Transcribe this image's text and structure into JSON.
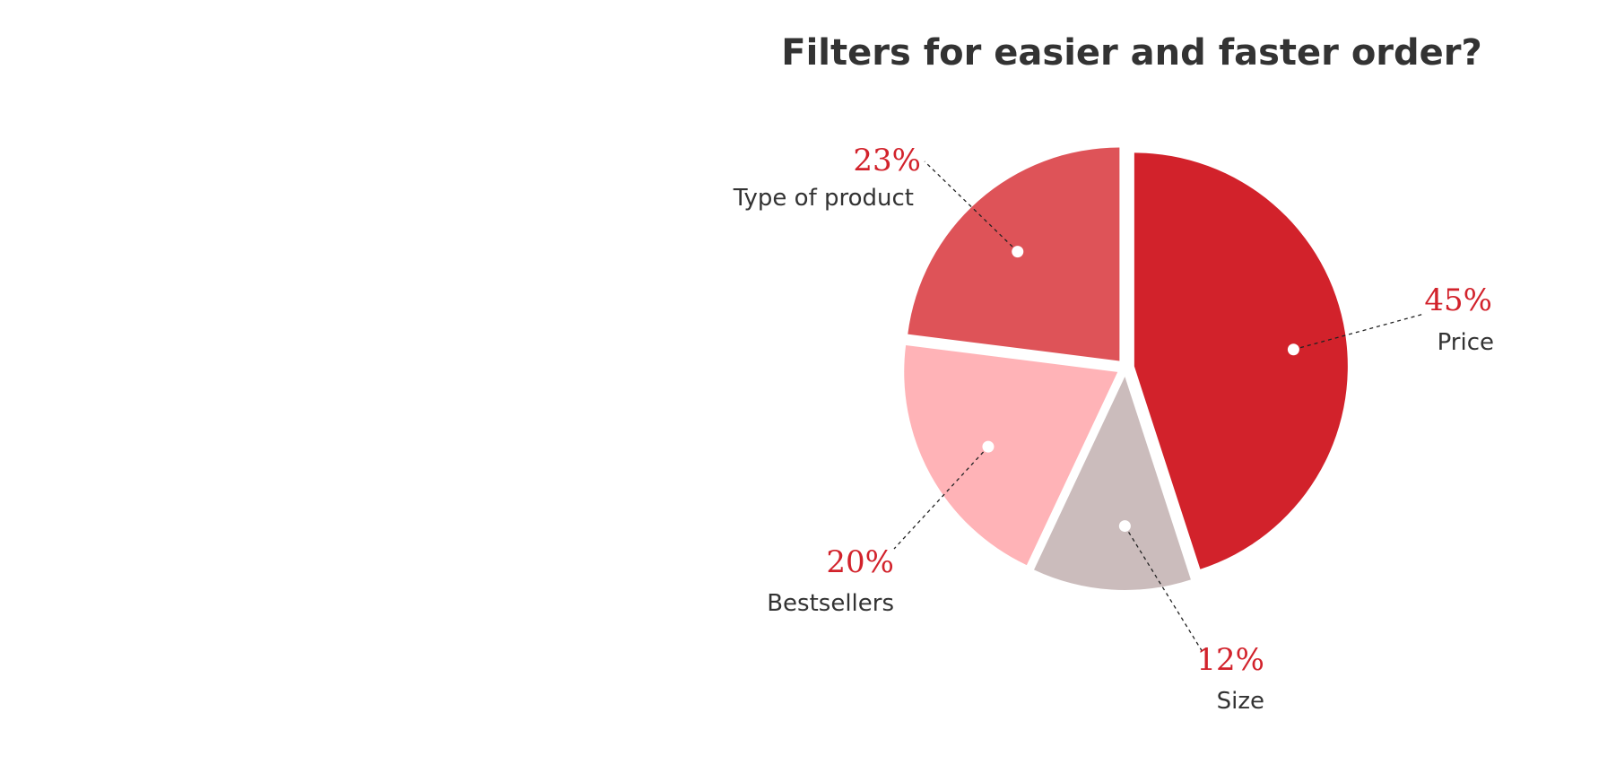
{
  "chart_data": {
    "type": "pie",
    "title": "Filters for easier and faster order?",
    "slices": [
      {
        "label": "Price",
        "value": 45,
        "value_label": "45%",
        "color": "#d2222b"
      },
      {
        "label": "Size",
        "value": 12,
        "value_label": "12%",
        "color": "#cbbcbc"
      },
      {
        "label": "Bestsellers",
        "value": 20,
        "value_label": "20%",
        "color": "#ffb3b7"
      },
      {
        "label": "Type of product",
        "value": 23,
        "value_label": "23%",
        "color": "#de5358"
      }
    ],
    "start_angle_deg": 0,
    "direction": "clockwise",
    "exploded": true,
    "percent_label_color": "#d2222b",
    "label_color": "#333333",
    "background": "#ffffff"
  }
}
